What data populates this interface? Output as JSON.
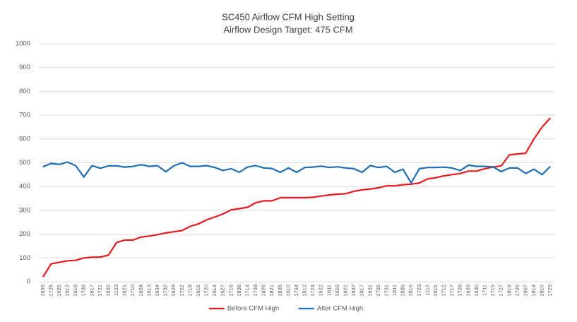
{
  "chart_data": {
    "type": "line",
    "title": "SC450 Airflow CFM High Setting",
    "subtitle": "Airflow Design Target: 475 CFM",
    "categories": [
      "1635",
      "1725",
      "1625",
      "1612",
      "1618",
      "1736",
      "1617",
      "1721",
      "1632",
      "1133",
      "1621",
      "1710",
      "1624",
      "1613",
      "1634",
      "1732",
      "1628",
      "1722",
      "1718",
      "1616",
      "1720",
      "1614",
      "1627",
      "1716",
      "1838",
      "1714",
      "1738",
      "1626",
      "1821",
      "1835",
      "1610",
      "1734",
      "1812",
      "1724",
      "1622",
      "1611",
      "1603",
      "1822",
      "1837",
      "1817",
      "1631",
      "1735",
      "1731",
      "1811",
      "1836",
      "1816",
      "1723",
      "1112",
      "1615",
      "1712",
      "1717",
      "1726",
      "1629",
      "1630",
      "1711",
      "1715",
      "1727",
      "1818",
      "1729",
      "1807",
      "1814",
      "1810",
      "1729"
    ],
    "series": [
      {
        "name": "Before CFM High",
        "color": "#e8191c",
        "values": [
          20,
          75,
          82,
          88,
          90,
          100,
          103,
          104,
          112,
          165,
          175,
          175,
          188,
          192,
          198,
          205,
          210,
          215,
          233,
          243,
          260,
          272,
          285,
          302,
          307,
          313,
          332,
          340,
          340,
          353,
          353,
          353,
          353,
          355,
          360,
          365,
          368,
          370,
          380,
          386,
          390,
          395,
          403,
          403,
          408,
          410,
          415,
          432,
          437,
          445,
          450,
          455,
          465,
          465,
          475,
          482,
          487,
          533,
          537,
          540,
          600,
          650,
          688
        ]
      },
      {
        "name": "After CFM High",
        "color": "#1f6db5",
        "values": [
          483,
          497,
          493,
          503,
          488,
          440,
          488,
          477,
          487,
          487,
          482,
          485,
          492,
          485,
          488,
          462,
          487,
          500,
          485,
          485,
          488,
          480,
          468,
          475,
          460,
          482,
          488,
          478,
          476,
          460,
          478,
          460,
          480,
          482,
          486,
          480,
          483,
          478,
          475,
          460,
          488,
          480,
          485,
          460,
          473,
          415,
          475,
          480,
          480,
          482,
          478,
          467,
          490,
          485,
          485,
          483,
          463,
          478,
          478,
          455,
          473,
          450,
          485
        ]
      }
    ],
    "ylim": [
      0,
      1000
    ],
    "yticks": [
      0,
      100,
      200,
      300,
      400,
      500,
      600,
      700,
      800,
      900,
      1000
    ],
    "grid": true,
    "legend": "bottom"
  }
}
